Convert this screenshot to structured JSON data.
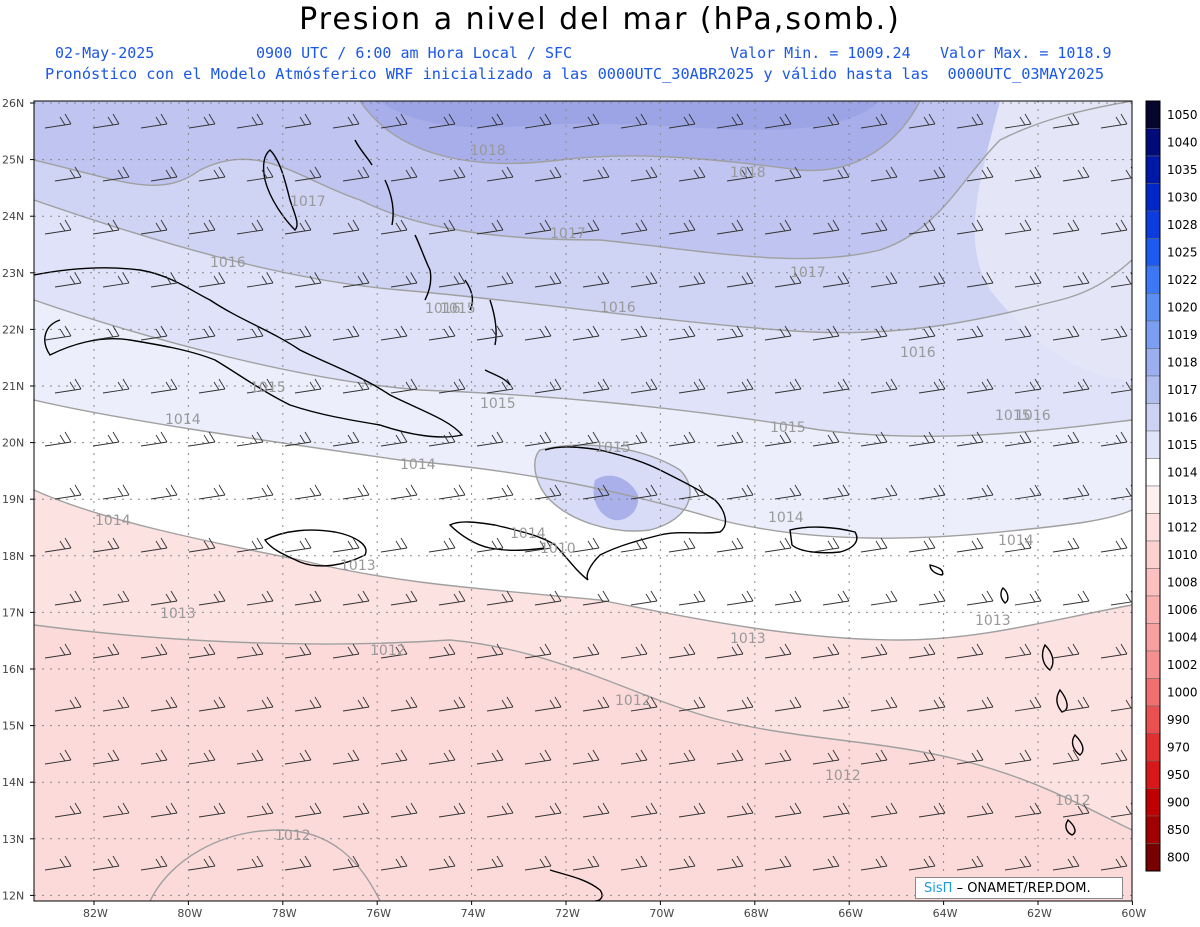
{
  "title": "Presion a nivel del mar (hPa,somb.)",
  "subtitle": {
    "date": "02-May-2025",
    "time": "0900 UTC / 6:00 am Hora Local / SFC",
    "min": "Valor Min. = 1009.24",
    "max": "Valor Max. = 1018.9",
    "model": "Pronóstico con el Modelo Atmósferico WRF inicializado a las 0000UTC_30ABR2025 y válido hasta las  0000UTC_03MAY2025"
  },
  "axes": {
    "lat_labels": [
      "26N",
      "25N",
      "24N",
      "23N",
      "22N",
      "21N",
      "20N",
      "19N",
      "18N",
      "17N",
      "16N",
      "15N",
      "14N",
      "13N",
      "12N"
    ],
    "lon_labels": [
      "82W",
      "80W",
      "78W",
      "76W",
      "74W",
      "72W",
      "70W",
      "68W",
      "66W",
      "64W",
      "62W",
      "60W"
    ]
  },
  "contour_labels": [
    "1018",
    "1018",
    "1017",
    "1017",
    "1017",
    "1016",
    "1016",
    "1016",
    "1016",
    "1015",
    "1015",
    "1015",
    "1015",
    "1014",
    "1014",
    "1014",
    "1014",
    "1014",
    "1014",
    "1013",
    "1013",
    "1013",
    "1013",
    "1012",
    "1012",
    "1012",
    "1012",
    "1012",
    "1010",
    "1015",
    "1015",
    "1016"
  ],
  "legend": {
    "levels": [
      "1050",
      "1040",
      "1035",
      "1030",
      "1028",
      "1025",
      "1022",
      "1020",
      "1019",
      "1018",
      "1017",
      "1016",
      "1015",
      "1014",
      "1013",
      "1012",
      "1010",
      "1008",
      "1006",
      "1004",
      "1002",
      "1000",
      "990",
      "970",
      "950",
      "900",
      "850",
      "800"
    ],
    "colors": [
      "#05052e",
      "#000a78",
      "#0018a8",
      "#0028c8",
      "#0a3ce0",
      "#1e5af0",
      "#3c78f4",
      "#5a8ef4",
      "#7a9ef2",
      "#9aaef0",
      "#b2bef0",
      "#ccd2f4",
      "#e0e4f8",
      "#ffffff",
      "#fff0f0",
      "#fee0e0",
      "#fdd0d0",
      "#fcc0c0",
      "#fbb0b0",
      "#f8a0a0",
      "#f59090",
      "#f07070",
      "#ea5050",
      "#e23030",
      "#d81818",
      "#c00000",
      "#a00000",
      "#780000"
    ]
  },
  "credit": {
    "brand": "SisΠ",
    "text": "– ONAMET/REP.DOM."
  }
}
